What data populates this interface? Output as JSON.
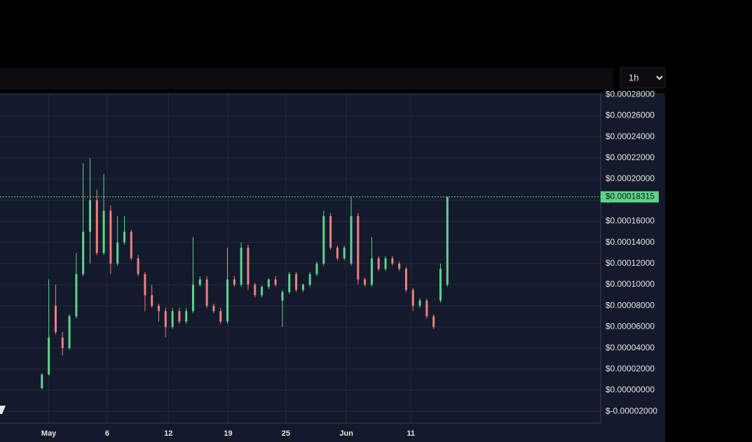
{
  "chart_data": {
    "type": "candlestick",
    "interval": "1h",
    "last_price": 0.00018315,
    "last_price_label": "$0.00018315",
    "up_color": "#5fd38d",
    "down_color": "#f08080",
    "grid": true,
    "open": [
      2e-06,
      1.5e-05,
      8e-05,
      5e-05,
      4e-05,
      7e-05,
      0.00011,
      0.00015,
      0.00018,
      0.00013,
      0.00017,
      0.00012,
      0.00014,
      0.00015,
      0.000125,
      0.00011,
      9e-05,
      8e-05,
      7.5e-05,
      6e-05,
      7.5e-05,
      6.5e-05,
      7.5e-05,
      0.0001,
      0.000105,
      8e-05,
      7.5e-05,
      6.5e-05,
      0.000105,
      0.0001,
      0.000135,
      0.0001,
      9e-05,
      9.8e-05,
      0.000105,
      8.5e-05,
      9.3e-05,
      0.00011,
      9.5e-05,
      0.0001,
      0.00011,
      0.00012,
      0.000165,
      0.000135,
      0.000125,
      0.00012,
      0.000165,
      0.000105,
      0.0001,
      0.000125,
      0.000115,
      0.000125,
      0.00012,
      0.000115,
      9.5e-05,
      8e-05,
      8.5e-05,
      7e-05,
      8.5e-05,
      0.0001
    ],
    "high": [
      1.6e-05,
      0.000105,
      0.0001,
      5.5e-05,
      7.2e-05,
      0.00013,
      0.000215,
      0.00022,
      0.00019,
      0.000205,
      0.000175,
      0.000165,
      0.000165,
      0.000152,
      0.000128,
      0.000112,
      0.0001,
      8.2e-05,
      7.8e-05,
      7.8e-05,
      7.8e-05,
      7.8e-05,
      0.000145,
      0.000108,
      0.000108,
      8.2e-05,
      7.8e-05,
      0.000135,
      0.000108,
      0.00014,
      0.000138,
      0.000102,
      9.9e-05,
      0.000106,
      0.000108,
      9.5e-05,
      0.000112,
      0.000112,
      0.000101,
      0.000112,
      0.000122,
      0.00017,
      0.000168,
      0.000137,
      0.000137,
      0.000183,
      0.000168,
      0.000107,
      0.000145,
      0.000127,
      0.000127,
      0.000127,
      0.000122,
      0.000117,
      9.7e-05,
      8.7e-05,
      8.7e-05,
      7.2e-05,
      0.00012,
      0.00018315
    ],
    "low": [
      1e-06,
      1.4e-05,
      5.3e-05,
      3.3e-05,
      3.8e-05,
      6.8e-05,
      0.000108,
      0.00012,
      0.000128,
      0.000128,
      0.00011,
      0.000118,
      0.000138,
      0.000123,
      0.000108,
      7.5e-05,
      7.8e-05,
      6.5e-05,
      5e-05,
      5.8e-05,
      6.3e-05,
      6.3e-05,
      7.3e-05,
      9.8e-05,
      7.8e-05,
      7.3e-05,
      6.3e-05,
      6.3e-05,
      9.8e-05,
      9.8e-05,
      9.5e-05,
      8.8e-05,
      8.8e-05,
      9.6e-05,
      9.8e-05,
      6e-05,
      9.1e-05,
      9.3e-05,
      9.3e-05,
      9.8e-05,
      0.000108,
      0.000118,
      0.000133,
      0.000123,
      0.000123,
      0.000118,
      0.0001,
      9.8e-05,
      9.8e-05,
      0.000113,
      0.000113,
      0.000118,
      0.000113,
      9.3e-05,
      7.5e-05,
      7.8e-05,
      6.8e-05,
      5.8e-05,
      8.3e-05,
      9.8e-05
    ],
    "close": [
      1.5e-05,
      5e-05,
      5.5e-05,
      4e-05,
      7e-05,
      0.00011,
      0.00015,
      0.00018,
      0.00013,
      0.00017,
      0.00012,
      0.00014,
      0.00015,
      0.000125,
      0.00011,
      9e-05,
      8e-05,
      7.5e-05,
      6e-05,
      7.5e-05,
      6.5e-05,
      7.5e-05,
      0.0001,
      0.000105,
      8e-05,
      7.5e-05,
      6.5e-05,
      0.000105,
      0.0001,
      0.000135,
      0.0001,
      9e-05,
      9.8e-05,
      0.000105,
      0.0001,
      9.3e-05,
      0.00011,
      9.5e-05,
      0.0001,
      0.00011,
      0.00012,
      0.000165,
      0.000135,
      0.000125,
      0.000135,
      0.000165,
      0.000105,
      0.0001,
      0.000125,
      0.000115,
      0.000125,
      0.00012,
      0.000115,
      9.5e-05,
      8e-05,
      8.5e-05,
      7e-05,
      6e-05,
      0.000115,
      0.00018315
    ],
    "xlim": [
      -6.1,
      81.3
    ],
    "xticks": [
      {
        "value": 1,
        "label": "May"
      },
      {
        "value": 9.5,
        "label": "6"
      },
      {
        "value": 18.4,
        "label": "12"
      },
      {
        "value": 27.1,
        "label": "19"
      },
      {
        "value": 35.5,
        "label": "25"
      },
      {
        "value": 44.3,
        "label": "Jun"
      },
      {
        "value": 53.7,
        "label": "11"
      }
    ],
    "ylim": [
      -3.11e-05,
      0.0002815
    ],
    "yticks": [
      {
        "value": 0.00028,
        "label": "$0.00028000"
      },
      {
        "value": 0.00026,
        "label": "$0.00026000"
      },
      {
        "value": 0.00024,
        "label": "$0.00024000"
      },
      {
        "value": 0.00022,
        "label": "$0.00022000"
      },
      {
        "value": 0.0002,
        "label": "$0.00020000"
      },
      {
        "value": 0.00018,
        "label": "$0.00018000"
      },
      {
        "value": 0.00016,
        "label": "$0.00016000"
      },
      {
        "value": 0.00014,
        "label": "$0.00014000"
      },
      {
        "value": 0.00012,
        "label": "$0.00012000"
      },
      {
        "value": 0.0001,
        "label": "$0.00010000"
      },
      {
        "value": 8e-05,
        "label": "$0.00008000"
      },
      {
        "value": 6e-05,
        "label": "$0.00006000"
      },
      {
        "value": 4e-05,
        "label": "$0.00004000"
      },
      {
        "value": 2e-05,
        "label": "$0.00002000"
      },
      {
        "value": 0,
        "label": "$0.00000000"
      },
      {
        "value": -2e-05,
        "label": "$-0.00002000"
      }
    ]
  }
}
